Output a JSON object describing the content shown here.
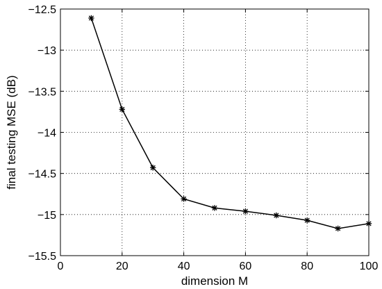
{
  "chart_data": {
    "type": "line",
    "title": "",
    "xlabel": "dimension M",
    "ylabel": "final testing MSE (dB)",
    "xlim": [
      0,
      100
    ],
    "ylim": [
      -15.5,
      -12.5
    ],
    "xticks": [
      0,
      20,
      40,
      60,
      80,
      100
    ],
    "yticks": [
      -12.5,
      -13,
      -13.5,
      -14,
      -14.5,
      -15,
      -15.5
    ],
    "xtick_labels": [
      "0",
      "20",
      "40",
      "60",
      "80",
      "100"
    ],
    "ytick_labels": [
      "−12.5",
      "−13",
      "−13.5",
      "−14",
      "−14.5",
      "−15",
      "−15.5"
    ],
    "grid": true,
    "grid_style": "dotted",
    "series": [
      {
        "color": "#000000",
        "marker": "asterisk",
        "x": [
          10,
          20,
          30,
          40,
          50,
          60,
          70,
          80,
          90,
          100
        ],
        "y": [
          -12.61,
          -13.72,
          -14.43,
          -14.81,
          -14.92,
          -14.96,
          -15.01,
          -15.07,
          -15.17,
          -15.11
        ]
      }
    ]
  }
}
